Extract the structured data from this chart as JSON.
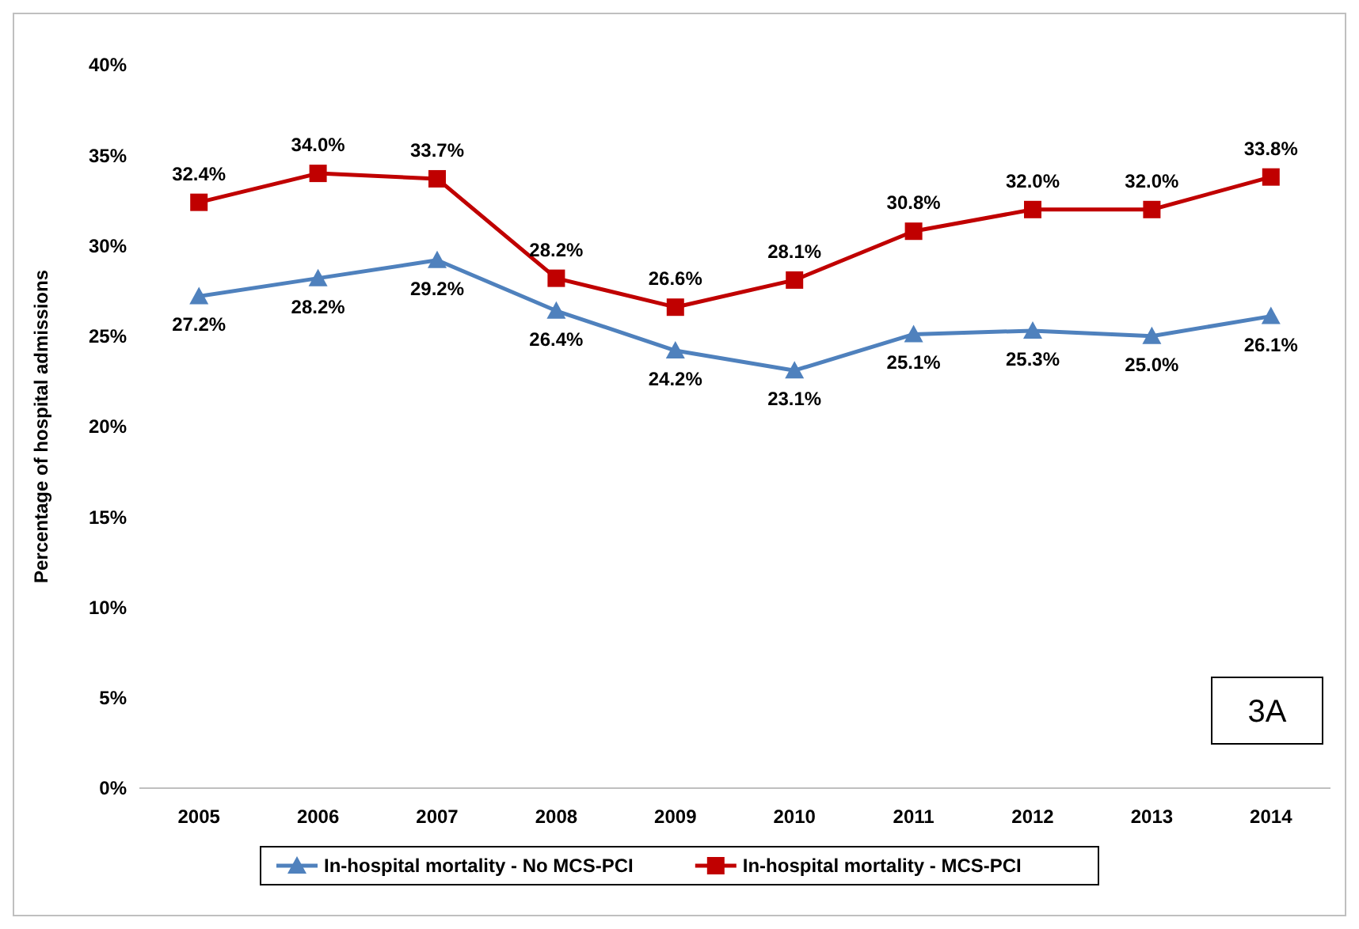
{
  "chart_data": {
    "type": "line",
    "ylabel": "Percentage of hospital admissions",
    "categories": [
      "2005",
      "2006",
      "2007",
      "2008",
      "2009",
      "2010",
      "2011",
      "2012",
      "2013",
      "2014"
    ],
    "series": [
      {
        "name": "In-hospital mortality - No MCS-PCI",
        "color": "#4f81bd",
        "marker": "triangle",
        "values": [
          27.2,
          28.2,
          29.2,
          26.4,
          24.2,
          23.1,
          25.1,
          25.3,
          25.0,
          26.1
        ],
        "value_labels": [
          "27.2%",
          "28.2%",
          "29.2%",
          "26.4%",
          "24.2%",
          "23.1%",
          "25.1%",
          "25.3%",
          "25.0%",
          "26.1%"
        ]
      },
      {
        "name": "In-hospital mortality - MCS-PCI",
        "color": "#c00000",
        "marker": "square",
        "values": [
          32.4,
          34.0,
          33.7,
          28.2,
          26.6,
          28.1,
          30.8,
          32.0,
          32.0,
          33.8
        ],
        "value_labels": [
          "32.4%",
          "34.0%",
          "33.7%",
          "28.2%",
          "26.6%",
          "28.1%",
          "30.8%",
          "32.0%",
          "32.0%",
          "33.8%"
        ]
      }
    ],
    "ylim": [
      0,
      40
    ],
    "yticks": [
      {
        "value": 0,
        "label": "0%"
      },
      {
        "value": 5,
        "label": "5%"
      },
      {
        "value": 10,
        "label": "10%"
      },
      {
        "value": 15,
        "label": "15%"
      },
      {
        "value": 20,
        "label": "20%"
      },
      {
        "value": 25,
        "label": "25%"
      },
      {
        "value": 30,
        "label": "30%"
      },
      {
        "value": 35,
        "label": "35%"
      },
      {
        "value": 40,
        "label": "40%"
      }
    ],
    "grid": false,
    "legend": "bottom",
    "line_style": "solid",
    "annotations": [
      "3A"
    ]
  }
}
